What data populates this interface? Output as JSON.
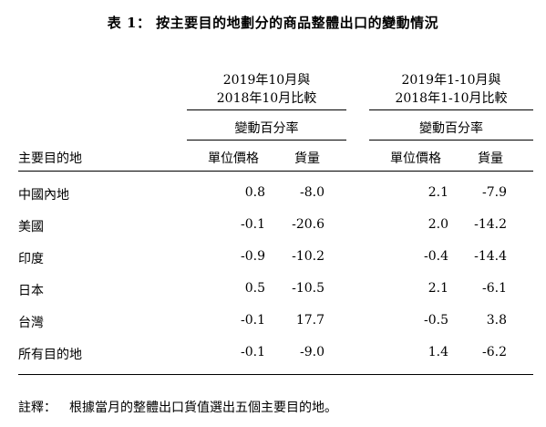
{
  "title": "表 1： 按主要目的地劃分的商品整體出口的變動情況",
  "period1": {
    "line1": "2019年10月與",
    "line2": "2018年10月比較",
    "sublabel": "變動百分率"
  },
  "period2": {
    "line1": "2019年1-10月與",
    "line2": "2018年1-10月比較",
    "sublabel": "變動百分率"
  },
  "columns": {
    "destination": "主要目的地",
    "p1_unit_value": "單位價格",
    "p1_volume": "貨量",
    "p2_unit_value": "單位價格",
    "p2_volume": "貨量"
  },
  "rows": [
    {
      "destination": "中國內地",
      "p1_unit_value": "0.8",
      "p1_volume": "-8.0",
      "p2_unit_value": "2.1",
      "p2_volume": "-7.9"
    },
    {
      "destination": "美國",
      "p1_unit_value": "-0.1",
      "p1_volume": "-20.6",
      "p2_unit_value": "2.0",
      "p2_volume": "-14.2"
    },
    {
      "destination": "印度",
      "p1_unit_value": "-0.9",
      "p1_volume": "-10.2",
      "p2_unit_value": "-0.4",
      "p2_volume": "-14.4"
    },
    {
      "destination": "日本",
      "p1_unit_value": "0.5",
      "p1_volume": "-10.5",
      "p2_unit_value": "2.1",
      "p2_volume": "-6.1"
    },
    {
      "destination": "台灣",
      "p1_unit_value": "-0.1",
      "p1_volume": "17.7",
      "p2_unit_value": "-0.5",
      "p2_volume": "3.8"
    },
    {
      "destination": "所有目的地",
      "p1_unit_value": "-0.1",
      "p1_volume": "-9.0",
      "p2_unit_value": "1.4",
      "p2_volume": "-6.2"
    }
  ],
  "note": {
    "label": "註釋：",
    "text": "根據當月的整體出口貨值選出五個主要目的地。"
  }
}
